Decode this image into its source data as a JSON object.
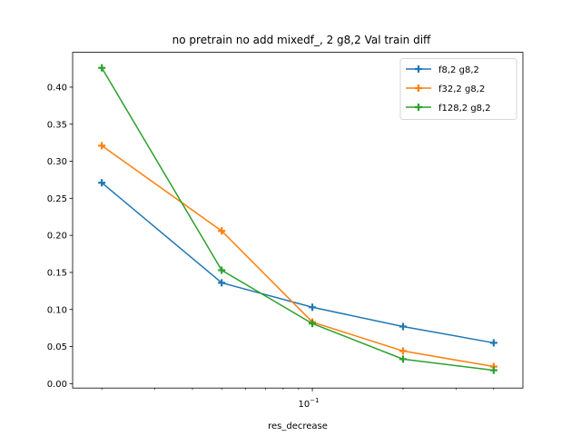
{
  "chart_data": {
    "type": "line",
    "title": "no pretrain no add mixedf_, 2 g8,2 Val train diff",
    "xlabel": "res_decrease",
    "ylabel": "",
    "xscale": "log",
    "x": [
      0.02,
      0.05,
      0.1,
      0.2,
      0.4
    ],
    "xlim": [
      0.016,
      0.5
    ],
    "ylim": [
      -0.006,
      0.447
    ],
    "x_tick_labels": [
      {
        "value": 0.1,
        "base": "10",
        "exponent": "−1"
      }
    ],
    "y_ticks": [
      "0.00",
      "0.05",
      "0.10",
      "0.15",
      "0.20",
      "0.25",
      "0.30",
      "0.35",
      "0.40"
    ],
    "legend_position": "upper right",
    "grid": false,
    "series": [
      {
        "name": "f8,2 g8,2",
        "color": "#1f77b4",
        "marker": "plus",
        "values": [
          0.271,
          0.136,
          0.103,
          0.077,
          0.055
        ]
      },
      {
        "name": "f32,2 g8,2",
        "color": "#ff7f0e",
        "marker": "plus",
        "values": [
          0.321,
          0.206,
          0.083,
          0.044,
          0.023
        ]
      },
      {
        "name": "f128,2 g8,2",
        "color": "#2ca02c",
        "marker": "plus",
        "values": [
          0.426,
          0.153,
          0.081,
          0.033,
          0.018
        ]
      }
    ]
  }
}
